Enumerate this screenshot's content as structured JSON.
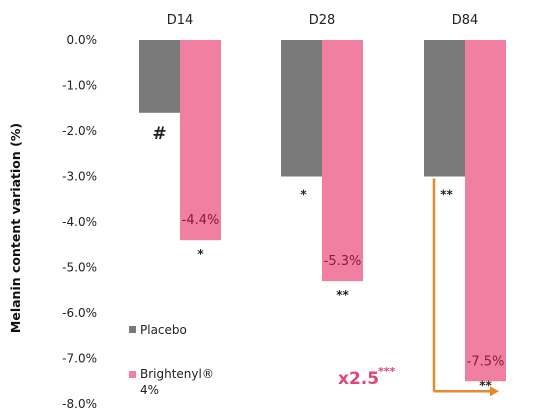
{
  "chart_data": {
    "type": "bar",
    "categories": [
      "D14",
      "D28",
      "D84"
    ],
    "series": [
      {
        "name": "Placebo",
        "values": [
          -1.6,
          -3.0,
          -3.0
        ],
        "color": "#7a7a7a"
      },
      {
        "name": "Brightenyl® 4%",
        "values": [
          -4.4,
          -5.3,
          -7.5
        ],
        "color": "#f07fa2"
      }
    ],
    "data_labels": [
      "-4.4%",
      "-5.3%",
      "-7.5%"
    ],
    "placebo_significance": [
      "#",
      "*",
      "**"
    ],
    "brightenyl_significance": [
      "*",
      "**",
      "**"
    ],
    "ylabel": "Melanin content variation (%)",
    "yticks": [
      "0.0%",
      "-1.0%",
      "-2.0%",
      "-3.0%",
      "-4.0%",
      "-5.0%",
      "-6.0%",
      "-7.0%",
      "-8.0%"
    ],
    "ylim": [
      -8,
      0
    ],
    "grid": false,
    "legend": {
      "placement": "bottom-left",
      "entries": [
        "Placebo",
        "Brightenyl® 4%"
      ]
    },
    "annotation": {
      "text": "x2.5",
      "significance": "***",
      "color": "#e8892b"
    }
  }
}
